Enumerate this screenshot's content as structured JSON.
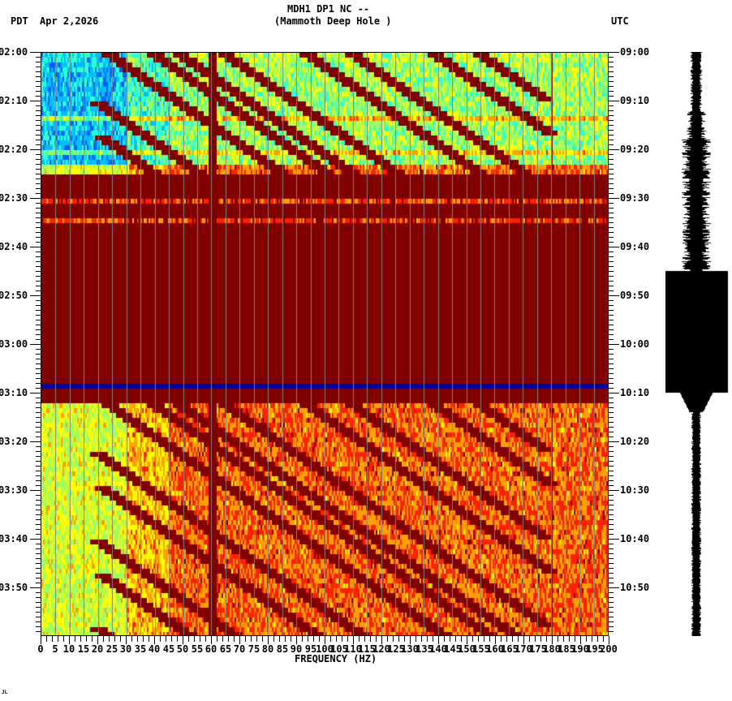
{
  "header": {
    "station_line": "MDH1 DP1 NC --",
    "station_name": "(Mammoth Deep Hole )",
    "left_timezone": "PDT",
    "date": "Apr 2,2026",
    "right_timezone": "UTC"
  },
  "footer": {
    "corner_mark": "JL"
  },
  "chart_data": {
    "type": "heatmap",
    "title": "MDH1 DP1 NC -- (Mammoth Deep Hole )",
    "subtitle": "Apr 2,2026",
    "xlabel": "FREQUENCY (HZ)",
    "ylabel_left": "PDT",
    "ylabel_right": "UTC",
    "xlim": [
      0,
      200
    ],
    "x_ticks": [
      0,
      5,
      10,
      15,
      20,
      25,
      30,
      35,
      40,
      45,
      50,
      55,
      60,
      65,
      70,
      75,
      80,
      85,
      90,
      95,
      100,
      105,
      110,
      115,
      120,
      125,
      130,
      135,
      140,
      145,
      150,
      155,
      160,
      165,
      170,
      175,
      180,
      185,
      190,
      195,
      200
    ],
    "y_ticks_left": [
      "02:00",
      "02:10",
      "02:20",
      "02:30",
      "02:40",
      "02:50",
      "03:00",
      "03:10",
      "03:20",
      "03:30",
      "03:40",
      "03:50"
    ],
    "y_ticks_right": [
      "09:00",
      "09:10",
      "09:20",
      "09:30",
      "09:40",
      "09:50",
      "10:00",
      "10:10",
      "10:20",
      "10:30",
      "10:40",
      "10:50"
    ],
    "time_span_minutes": 120,
    "colormap": [
      "#0000a0",
      "#0060ff",
      "#00c0ff",
      "#30ffd0",
      "#a0ff60",
      "#ffff00",
      "#ffa000",
      "#ff2000",
      "#800000"
    ],
    "features": [
      {
        "type": "saturated_band",
        "start": "02:25",
        "end": "03:10",
        "color": "#800000",
        "note": "high energy across all frequencies"
      },
      {
        "type": "data_gap_line",
        "time": "03:08",
        "color": "#0000a0"
      },
      {
        "type": "constant_line",
        "frequency_hz": 60,
        "color": "#800000"
      },
      {
        "type": "constant_line",
        "frequency_hz": 180,
        "color": "#800000"
      },
      {
        "type": "sweeping_tones",
        "note": "curved harmonics increasing in frequency over time, 02:00-02:25 and 03:10-04:00"
      },
      {
        "type": "low_energy_region",
        "frequency_range_hz": [
          0,
          30
        ],
        "color": "#0060ff"
      }
    ],
    "side_trace": {
      "type": "seismogram",
      "note": "amplitude envelope; max saturated between ~02:45 and 03:09"
    }
  }
}
